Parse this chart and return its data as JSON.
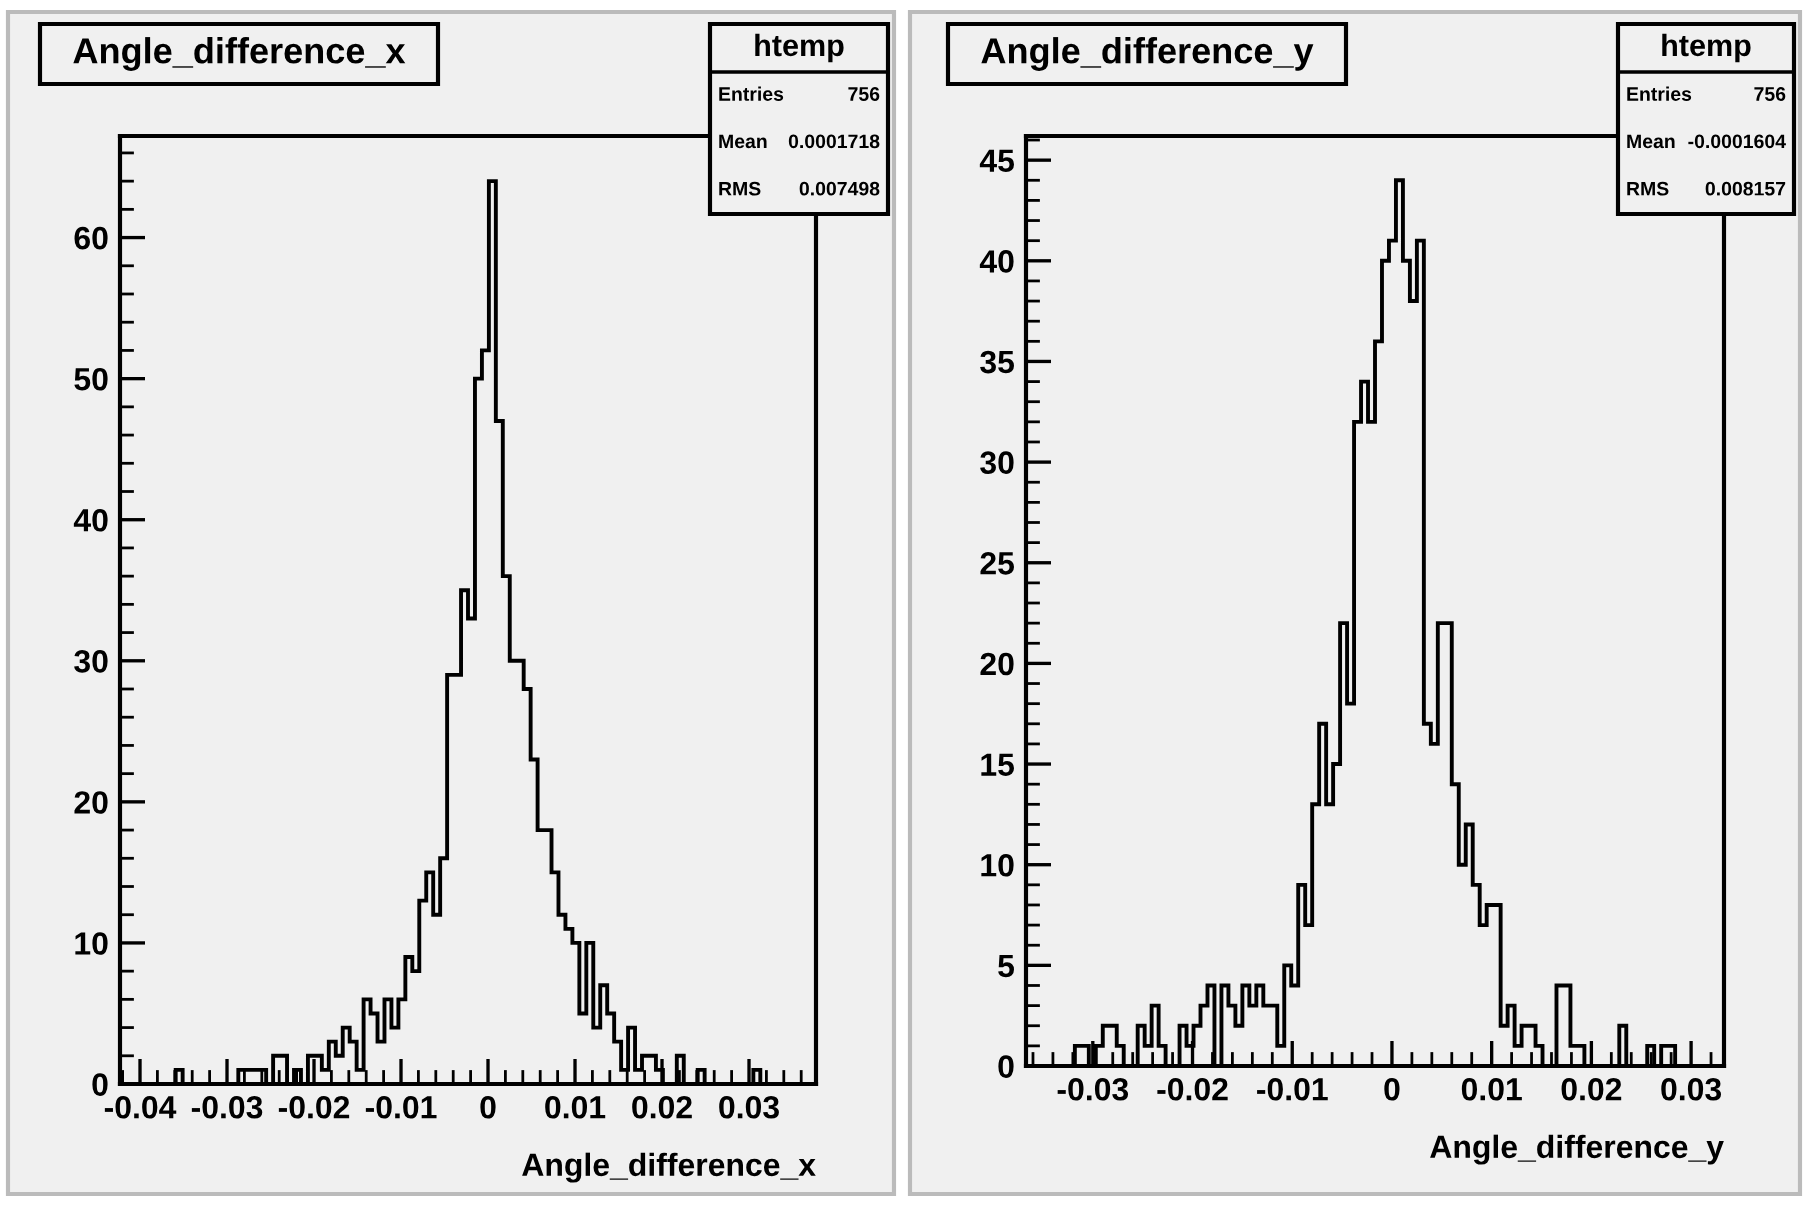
{
  "chart_data": [
    {
      "type": "histogram",
      "title": "Angle_difference_x",
      "xlabel": "Angle_difference_x",
      "annotations": [
        "htemp",
        "Entries",
        "756",
        "Mean",
        "0.0001718",
        "RMS",
        "0.007498"
      ],
      "bins": [
        -0.0423,
        -0.0415,
        -0.0407,
        -0.0399,
        -0.0391,
        -0.0383,
        -0.0375,
        -0.0367,
        -0.0359,
        -0.0351,
        -0.0343,
        -0.0335,
        -0.0327,
        -0.0319,
        -0.0311,
        -0.0303,
        -0.0295,
        -0.0287,
        -0.0279,
        -0.0271,
        -0.0263,
        -0.0255,
        -0.0247,
        -0.0239,
        -0.0231,
        -0.0223,
        -0.0215,
        -0.0207,
        -0.0199,
        -0.0191,
        -0.0183,
        -0.0175,
        -0.0167,
        -0.0159,
        -0.0151,
        -0.0143,
        -0.0135,
        -0.0127,
        -0.0119,
        -0.0111,
        -0.0103,
        -0.0095,
        -0.0087,
        -0.0079,
        -0.0071,
        -0.0063,
        -0.0055,
        -0.0047,
        -0.0039,
        -0.0031,
        -0.0023,
        -0.0015,
        -0.0007,
        0.0001,
        0.0009,
        0.0017,
        0.0025,
        0.0033,
        0.0041,
        0.0049,
        0.0057,
        0.0065,
        0.0073,
        0.0081,
        0.0089,
        0.0097,
        0.0105,
        0.0113,
        0.0121,
        0.0129,
        0.0137,
        0.0145,
        0.0153,
        0.0161,
        0.0169,
        0.0177,
        0.0185,
        0.0193,
        0.0201,
        0.0209,
        0.0217,
        0.0225,
        0.0233,
        0.0241,
        0.0249,
        0.0257,
        0.0265,
        0.0273,
        0.0281,
        0.0289,
        0.0297,
        0.0305,
        0.0313,
        0.0321,
        0.0329,
        0.0337,
        0.0345,
        0.0353,
        0.0361,
        0.0369,
        0.0377
      ],
      "values": [
        0,
        0,
        0,
        0,
        0,
        0,
        0,
        0,
        1,
        0,
        0,
        0,
        0,
        0,
        0,
        0,
        0,
        1,
        1,
        1,
        1,
        0,
        2,
        2,
        0,
        1,
        0,
        2,
        2,
        1,
        3,
        2,
        4,
        3,
        1,
        6,
        5,
        3,
        6,
        4,
        6,
        9,
        8,
        13,
        15,
        12,
        16,
        29,
        29,
        35,
        33,
        50,
        52,
        64,
        47,
        36,
        30,
        30,
        28,
        23,
        18,
        18,
        15,
        12,
        11,
        10,
        5,
        10,
        4,
        7,
        5,
        3,
        1,
        4,
        1,
        2,
        2,
        1,
        0,
        0,
        2,
        0,
        0,
        1,
        0,
        0,
        0,
        0,
        0,
        0,
        0,
        1,
        0,
        0,
        0,
        0,
        0,
        0,
        0,
        0
      ],
      "xlim": [
        -0.0423,
        0.0377
      ],
      "ylim": [
        0,
        67.2
      ],
      "xticks": [
        -0.04,
        -0.03,
        -0.02,
        -0.01,
        0,
        0.01,
        0.02,
        0.03
      ],
      "yticks": [
        0,
        10,
        20,
        30,
        40,
        50,
        60
      ]
    },
    {
      "type": "histogram",
      "title": "Angle_difference_y",
      "xlabel": "Angle_difference_y",
      "annotations": [
        "htemp",
        "Entries",
        "756",
        "Mean",
        "-0.0001604",
        "RMS",
        "0.008157"
      ],
      "bins": [
        -0.0367,
        -0.036,
        -0.0353,
        -0.0346,
        -0.0339,
        -0.0332,
        -0.0325,
        -0.0318,
        -0.0311,
        -0.0304,
        -0.0297,
        -0.029,
        -0.0283,
        -0.0276,
        -0.0269,
        -0.0262,
        -0.0255,
        -0.0248,
        -0.0241,
        -0.0234,
        -0.0227,
        -0.022,
        -0.0213,
        -0.0206,
        -0.0199,
        -0.0192,
        -0.0185,
        -0.0178,
        -0.0171,
        -0.0164,
        -0.0157,
        -0.015,
        -0.0143,
        -0.0136,
        -0.0129,
        -0.0122,
        -0.0115,
        -0.0108,
        -0.0101,
        -0.0094,
        -0.0087,
        -0.008,
        -0.0073,
        -0.0066,
        -0.0059,
        -0.0052,
        -0.0045,
        -0.0038,
        -0.0031,
        -0.0024,
        -0.0017,
        -0.001,
        -0.0003,
        0.0004,
        0.0011,
        0.0018,
        0.0025,
        0.0032,
        0.0039,
        0.0046,
        0.0053,
        0.006,
        0.0067,
        0.0074,
        0.0081,
        0.0088,
        0.0095,
        0.0102,
        0.0109,
        0.0116,
        0.0123,
        0.013,
        0.0137,
        0.0144,
        0.0151,
        0.0158,
        0.0165,
        0.0172,
        0.0179,
        0.0186,
        0.0193,
        0.02,
        0.0207,
        0.0214,
        0.0221,
        0.0228,
        0.0235,
        0.0242,
        0.0249,
        0.0256,
        0.0263,
        0.027,
        0.0277,
        0.0284,
        0.0291,
        0.0298,
        0.0305,
        0.0312,
        0.0319,
        0.0326,
        0.0333
      ],
      "values": [
        0,
        0,
        0,
        0,
        0,
        0,
        0,
        1,
        1,
        0,
        1,
        2,
        2,
        1,
        0,
        0,
        2,
        1,
        3,
        1,
        0,
        0,
        2,
        1,
        2,
        3,
        4,
        0,
        4,
        3,
        2,
        4,
        3,
        4,
        3,
        3,
        1,
        5,
        4,
        9,
        7,
        13,
        17,
        13,
        15,
        22,
        18,
        32,
        34,
        32,
        36,
        40,
        41,
        44,
        40,
        38,
        41,
        17,
        16,
        22,
        22,
        14,
        10,
        12,
        9,
        7,
        8,
        8,
        2,
        3,
        1,
        2,
        2,
        1,
        0,
        0,
        4,
        4,
        1,
        1,
        0,
        0,
        0,
        0,
        0,
        2,
        0,
        0,
        0,
        1,
        0,
        1,
        1,
        0,
        0,
        0,
        0,
        0,
        0,
        0
      ],
      "xlim": [
        -0.0367,
        0.0333
      ],
      "ylim": [
        0,
        46.2
      ],
      "xticks": [
        -0.03,
        -0.02,
        -0.01,
        0,
        0.01,
        0.02,
        0.03
      ],
      "yticks": [
        0,
        5,
        10,
        15,
        20,
        25,
        30,
        35,
        40,
        45
      ]
    }
  ]
}
